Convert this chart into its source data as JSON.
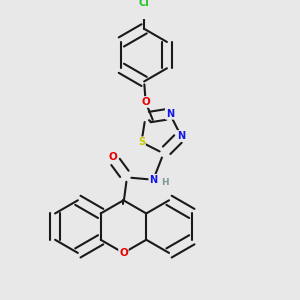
{
  "bg": "#e8e8e8",
  "bond_color": "#1a1a1a",
  "atom_colors": {
    "Cl": "#1dc41d",
    "O": "#e60000",
    "N": "#1414e6",
    "S": "#c8c800",
    "H": "#7a9a9a",
    "C": "#1a1a1a"
  },
  "figsize": [
    3.0,
    3.0
  ],
  "dpi": 100,
  "lw": 1.5,
  "sep": 0.018,
  "fs": 7.5
}
